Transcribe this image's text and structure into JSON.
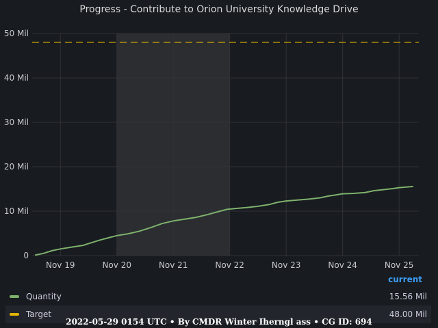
{
  "title": "Progress - Contribute to Orion University Knowledge Drive",
  "legend": {
    "header": "current",
    "items": [
      {
        "name": "Quantity",
        "color": "#7eb26d",
        "value": "15.56 Mil"
      },
      {
        "name": "Target",
        "color": "#e0b400",
        "value": "48.00 Mil"
      }
    ]
  },
  "footer": "2022-05-29 0154 UTC • By CMDR Winter Iherngl ass • CG ID: 694",
  "chart_data": {
    "type": "line",
    "title": "Progress - Contribute to Orion University Knowledge Drive",
    "xlabel": "",
    "ylabel": "",
    "x_ticks": [
      "Nov 19",
      "Nov 20",
      "Nov 21",
      "Nov 22",
      "Nov 23",
      "Nov 24",
      "Nov 25"
    ],
    "y_ticks": [
      "0",
      "10 Mil",
      "20 Mil",
      "30 Mil",
      "40 Mil",
      "50 Mil"
    ],
    "xlim": [
      18.5,
      25.35
    ],
    "ylim": [
      0,
      50
    ],
    "grid": true,
    "highlight_region": [
      20.0,
      22.0
    ],
    "series": [
      {
        "name": "Quantity",
        "color": "#7eb26d",
        "x": [
          18.55,
          18.7,
          18.85,
          19.0,
          19.2,
          19.4,
          19.5,
          19.7,
          19.85,
          20.0,
          20.2,
          20.4,
          20.6,
          20.8,
          21.0,
          21.2,
          21.4,
          21.6,
          21.8,
          21.95,
          22.1,
          22.3,
          22.5,
          22.7,
          22.85,
          23.0,
          23.2,
          23.4,
          23.6,
          23.75,
          23.85,
          24.0,
          24.2,
          24.4,
          24.55,
          24.7,
          24.9,
          25.0,
          25.25
        ],
        "y": [
          0.1,
          0.5,
          1.1,
          1.5,
          1.9,
          2.3,
          2.7,
          3.5,
          4.0,
          4.5,
          4.9,
          5.5,
          6.3,
          7.2,
          7.8,
          8.2,
          8.6,
          9.2,
          9.9,
          10.4,
          10.6,
          10.8,
          11.1,
          11.5,
          12.0,
          12.3,
          12.5,
          12.7,
          13.0,
          13.4,
          13.6,
          13.9,
          14.0,
          14.2,
          14.6,
          14.8,
          15.1,
          15.3,
          15.56
        ]
      },
      {
        "name": "Target",
        "color": "#e0b400",
        "style": "dashed",
        "x": [
          18.5,
          25.35
        ],
        "y": [
          48.0,
          48.0
        ]
      }
    ]
  }
}
